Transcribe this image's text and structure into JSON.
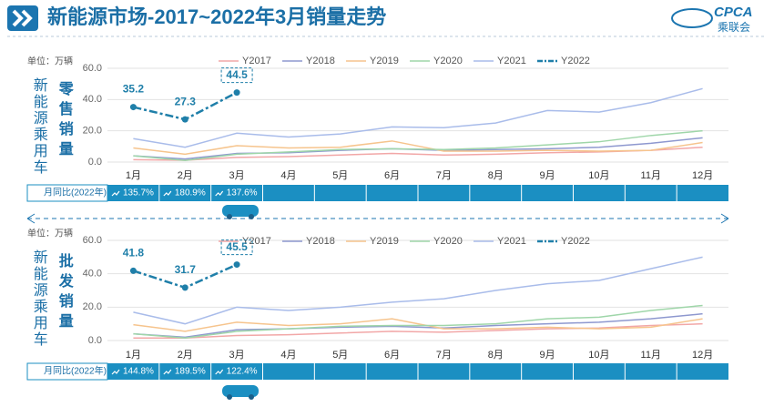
{
  "header": {
    "title": "新能源市场-2017~2022年3月销量走势",
    "logo": "CPCA",
    "logo_sub": "乘联会"
  },
  "chart_data": [
    {
      "type": "line",
      "title": "零售销量",
      "side_label": "新能源乘用车",
      "unit": "单位：万辆",
      "categories": [
        "1月",
        "2月",
        "3月",
        "4月",
        "5月",
        "6月",
        "7月",
        "8月",
        "9月",
        "10月",
        "11月",
        "12月"
      ],
      "ylim": [
        0,
        60
      ],
      "yticks": [
        {
          "value": 0,
          "label": "0.0"
        },
        {
          "value": 20,
          "label": "20.0"
        },
        {
          "value": 40,
          "label": "40.0"
        },
        {
          "value": 60,
          "label": "60.0"
        }
      ],
      "grid": true,
      "series": [
        {
          "name": "Y2017",
          "color": "#f2a7a7",
          "values": [
            1.5,
            1.2,
            3.0,
            3.5,
            4.5,
            5.5,
            4.5,
            5.0,
            6.0,
            6.5,
            7.5,
            9.5
          ]
        },
        {
          "name": "Y2018",
          "color": "#8e98cf",
          "values": [
            4,
            2,
            5.5,
            6,
            7.5,
            8.5,
            7.5,
            8,
            8.5,
            9.5,
            12,
            15.5
          ]
        },
        {
          "name": "Y2019",
          "color": "#f6c48d",
          "values": [
            9,
            5,
            10.5,
            9,
            9.5,
            13.5,
            7,
            7,
            7.5,
            7,
            7.5,
            12.5
          ]
        },
        {
          "name": "Y2020",
          "color": "#9fd6a9",
          "values": [
            4,
            1,
            5,
            6.5,
            8,
            8.5,
            8,
            9,
            11,
            13,
            17,
            20
          ]
        },
        {
          "name": "Y2021",
          "color": "#a9bcea",
          "values": [
            15,
            9.5,
            18.5,
            16,
            18,
            22.5,
            22,
            25,
            33,
            32,
            38,
            47
          ]
        },
        {
          "name": "Y2022",
          "color": "#1f7fa9",
          "values": [
            35.2,
            27.3,
            44.5,
            null,
            null,
            null,
            null,
            null,
            null,
            null,
            null,
            null
          ]
        }
      ],
      "yoy": {
        "label": "月同比(2022年)",
        "values": [
          "135.7%",
          "180.9%",
          "137.6%"
        ]
      }
    },
    {
      "type": "line",
      "title": "批发销量",
      "side_label": "新能源乘用车",
      "unit": "单位：万辆",
      "categories": [
        "1月",
        "2月",
        "3月",
        "4月",
        "5月",
        "6月",
        "7月",
        "8月",
        "9月",
        "10月",
        "11月",
        "12月"
      ],
      "ylim": [
        0,
        60
      ],
      "yticks": [
        {
          "value": 0,
          "label": "0.0"
        },
        {
          "value": 20,
          "label": "20.0"
        },
        {
          "value": 40,
          "label": "40.0"
        },
        {
          "value": 60,
          "label": "60.0"
        }
      ],
      "grid": true,
      "series": [
        {
          "name": "Y2017",
          "color": "#f2a7a7",
          "values": [
            1.5,
            1.5,
            3,
            3.5,
            4.5,
            5.5,
            5,
            6,
            7,
            7.5,
            9,
            10
          ]
        },
        {
          "name": "Y2018",
          "color": "#8e98cf",
          "values": [
            4,
            2,
            6.5,
            7,
            8,
            8.5,
            7.5,
            9,
            10,
            11,
            13,
            16
          ]
        },
        {
          "name": "Y2019",
          "color": "#f6c48d",
          "values": [
            9.5,
            5.5,
            11,
            9,
            10,
            13,
            7,
            7,
            8,
            7,
            8,
            13
          ]
        },
        {
          "name": "Y2020",
          "color": "#9fd6a9",
          "values": [
            4,
            1.5,
            5.5,
            7,
            8.5,
            9,
            9,
            10,
            13,
            14,
            18,
            21
          ]
        },
        {
          "name": "Y2021",
          "color": "#a9bcea",
          "values": [
            17,
            10,
            20,
            18,
            20,
            23,
            25,
            30,
            34,
            36,
            43,
            50
          ]
        },
        {
          "name": "Y2022",
          "color": "#1f7fa9",
          "values": [
            41.8,
            31.7,
            45.5,
            null,
            null,
            null,
            null,
            null,
            null,
            null,
            null,
            null
          ]
        }
      ],
      "yoy": {
        "label": "月同比(2022年)",
        "values": [
          "144.8%",
          "189.5%",
          "122.4%"
        ]
      }
    }
  ]
}
